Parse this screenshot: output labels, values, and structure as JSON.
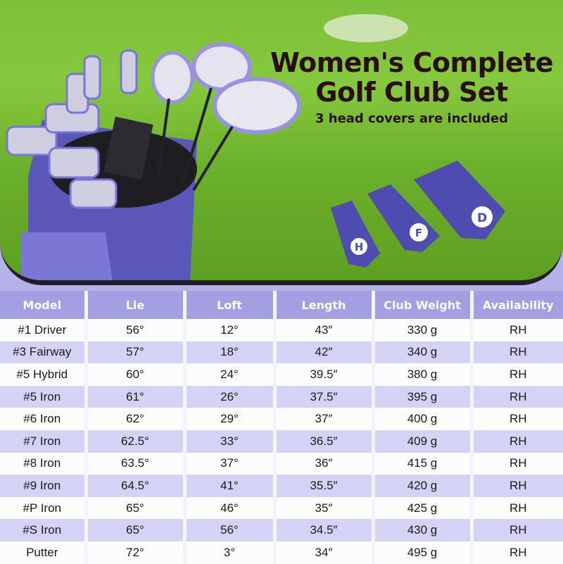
{
  "hero": {
    "title_line1": "Women's Complete",
    "title_line2": "Golf Club Set",
    "subtitle": "3 head covers are included",
    "head_cover_letters": [
      "H",
      "F",
      "D"
    ]
  },
  "colors": {
    "header_bg": "#a39fe3",
    "row_alt": "#d4d2f5",
    "row": "#fdfcfd",
    "title": "#2a0d0d",
    "accent": "#7a74d6"
  },
  "table": {
    "headers": [
      "Model",
      "Lie",
      "Loft",
      "Length",
      "Club Weight",
      "Availability"
    ],
    "rows": [
      [
        "#1 Driver",
        "56°",
        "12°",
        "43″",
        "330 g",
        "RH"
      ],
      [
        "#3 Fairway",
        "57°",
        "18°",
        "42″",
        "340 g",
        "RH"
      ],
      [
        "#5 Hybrid",
        "60°",
        "24°",
        "39.5″",
        "380 g",
        "RH"
      ],
      [
        "#5 Iron",
        "61°",
        "26°",
        "37.5″",
        "395 g",
        "RH"
      ],
      [
        "#6 Iron",
        "62°",
        "29°",
        "37″",
        "400 g",
        "RH"
      ],
      [
        "#7 Iron",
        "62.5°",
        "33°",
        "36.5″",
        "409 g",
        "RH"
      ],
      [
        "#8 Iron",
        "63.5°",
        "37°",
        "36″",
        "415 g",
        "RH"
      ],
      [
        "#9 Iron",
        "64.5°",
        "41°",
        "35.5″",
        "420 g",
        "RH"
      ],
      [
        "#P Iron",
        "65°",
        "46°",
        "35″",
        "425 g",
        "RH"
      ],
      [
        "#S Iron",
        "65°",
        "56°",
        "34.5″",
        "430 g",
        "RH"
      ],
      [
        "Putter",
        "72°",
        "3°",
        "34″",
        "495 g",
        "RH"
      ]
    ]
  }
}
